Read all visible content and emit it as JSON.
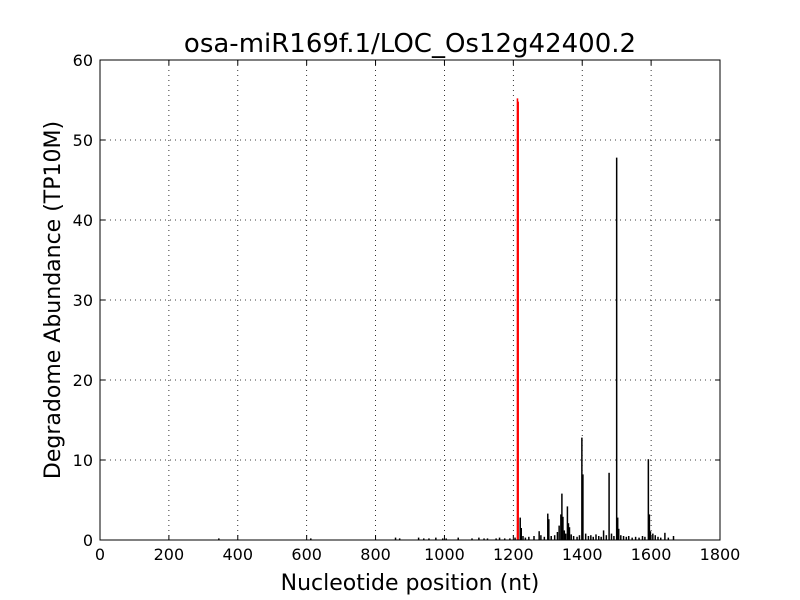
{
  "chart_data": {
    "type": "bar",
    "title": "osa-miR169f.1/LOC_Os12g42400.2",
    "xlabel": "Nucleotide position (nt)",
    "ylabel": "Degradome Abundance (TP10M)",
    "xlim": [
      0,
      1800
    ],
    "ylim": [
      0,
      60
    ],
    "xticks": [
      0,
      200,
      400,
      600,
      800,
      1000,
      1200,
      1400,
      1600,
      1800
    ],
    "yticks": [
      0,
      10,
      20,
      30,
      40,
      50,
      60
    ],
    "grid": true,
    "colors": {
      "background": "#000000",
      "highlight": "#ff0000"
    },
    "highlight": [
      {
        "x": 1212,
        "y": 55.2
      },
      {
        "x": 1214,
        "y": 54.8
      }
    ],
    "background_series": [
      {
        "x": 345,
        "y": 0.2
      },
      {
        "x": 612,
        "y": 0.2
      },
      {
        "x": 858,
        "y": 0.3
      },
      {
        "x": 870,
        "y": 0.2
      },
      {
        "x": 925,
        "y": 0.3
      },
      {
        "x": 940,
        "y": 0.2
      },
      {
        "x": 955,
        "y": 0.2
      },
      {
        "x": 975,
        "y": 0.3
      },
      {
        "x": 995,
        "y": 0.2
      },
      {
        "x": 1005,
        "y": 0.2
      },
      {
        "x": 1040,
        "y": 0.3
      },
      {
        "x": 1080,
        "y": 0.2
      },
      {
        "x": 1100,
        "y": 0.3
      },
      {
        "x": 1115,
        "y": 0.2
      },
      {
        "x": 1125,
        "y": 0.2
      },
      {
        "x": 1150,
        "y": 0.2
      },
      {
        "x": 1160,
        "y": 0.3
      },
      {
        "x": 1175,
        "y": 0.2
      },
      {
        "x": 1190,
        "y": 0.2
      },
      {
        "x": 1205,
        "y": 0.3
      },
      {
        "x": 1220,
        "y": 2.8
      },
      {
        "x": 1223,
        "y": 1.5
      },
      {
        "x": 1228,
        "y": 0.5
      },
      {
        "x": 1235,
        "y": 0.3
      },
      {
        "x": 1245,
        "y": 0.4
      },
      {
        "x": 1260,
        "y": 0.5
      },
      {
        "x": 1275,
        "y": 1.1
      },
      {
        "x": 1280,
        "y": 0.6
      },
      {
        "x": 1290,
        "y": 0.4
      },
      {
        "x": 1300,
        "y": 3.3
      },
      {
        "x": 1303,
        "y": 2.6
      },
      {
        "x": 1310,
        "y": 0.5
      },
      {
        "x": 1320,
        "y": 0.6
      },
      {
        "x": 1328,
        "y": 1.0
      },
      {
        "x": 1333,
        "y": 1.8
      },
      {
        "x": 1338,
        "y": 3.2
      },
      {
        "x": 1341,
        "y": 5.8
      },
      {
        "x": 1344,
        "y": 2.9
      },
      {
        "x": 1348,
        "y": 1.2
      },
      {
        "x": 1352,
        "y": 0.8
      },
      {
        "x": 1357,
        "y": 4.2
      },
      {
        "x": 1360,
        "y": 2.1
      },
      {
        "x": 1363,
        "y": 1.6
      },
      {
        "x": 1368,
        "y": 0.7
      },
      {
        "x": 1375,
        "y": 0.5
      },
      {
        "x": 1385,
        "y": 0.4
      },
      {
        "x": 1392,
        "y": 0.6
      },
      {
        "x": 1399,
        "y": 12.8
      },
      {
        "x": 1402,
        "y": 8.2
      },
      {
        "x": 1410,
        "y": 0.8
      },
      {
        "x": 1418,
        "y": 0.5
      },
      {
        "x": 1425,
        "y": 0.6
      },
      {
        "x": 1432,
        "y": 0.4
      },
      {
        "x": 1440,
        "y": 0.7
      },
      {
        "x": 1448,
        "y": 0.5
      },
      {
        "x": 1455,
        "y": 0.4
      },
      {
        "x": 1462,
        "y": 1.2
      },
      {
        "x": 1470,
        "y": 0.6
      },
      {
        "x": 1478,
        "y": 8.4
      },
      {
        "x": 1485,
        "y": 0.8
      },
      {
        "x": 1492,
        "y": 0.5
      },
      {
        "x": 1500,
        "y": 47.8
      },
      {
        "x": 1503,
        "y": 2.8
      },
      {
        "x": 1506,
        "y": 1.4
      },
      {
        "x": 1512,
        "y": 0.6
      },
      {
        "x": 1520,
        "y": 0.5
      },
      {
        "x": 1528,
        "y": 0.4
      },
      {
        "x": 1535,
        "y": 0.5
      },
      {
        "x": 1545,
        "y": 0.3
      },
      {
        "x": 1555,
        "y": 0.4
      },
      {
        "x": 1565,
        "y": 0.3
      },
      {
        "x": 1575,
        "y": 0.5
      },
      {
        "x": 1582,
        "y": 0.4
      },
      {
        "x": 1592,
        "y": 10.1
      },
      {
        "x": 1595,
        "y": 3.2
      },
      {
        "x": 1598,
        "y": 1.1
      },
      {
        "x": 1605,
        "y": 0.8
      },
      {
        "x": 1612,
        "y": 0.6
      },
      {
        "x": 1620,
        "y": 0.4
      },
      {
        "x": 1628,
        "y": 0.3
      },
      {
        "x": 1640,
        "y": 0.9
      },
      {
        "x": 1650,
        "y": 0.3
      },
      {
        "x": 1665,
        "y": 0.5
      }
    ]
  }
}
